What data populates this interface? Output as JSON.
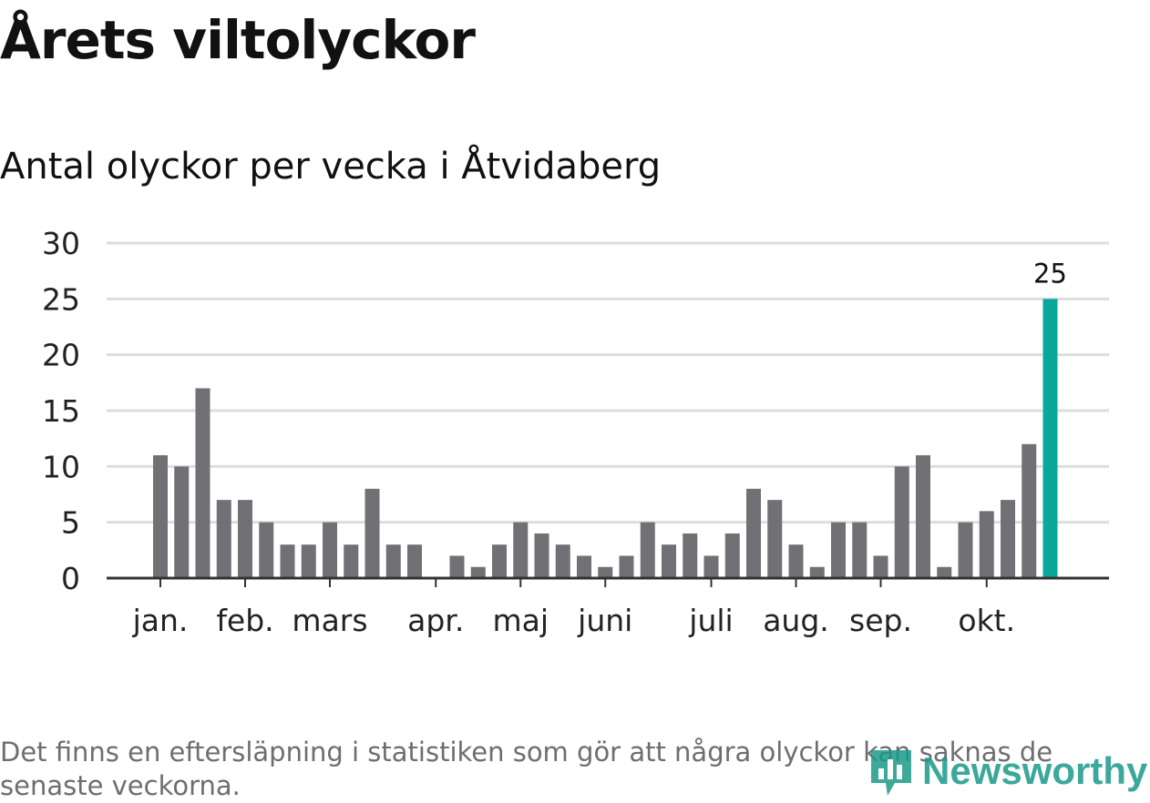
{
  "title": "Årets viltolyckor",
  "subtitle": "Antal olyckor per vecka i Åtvidaberg",
  "footnote": "Det finns en eftersläpning i statistiken som gör att några olyckor kan saknas de senaste veckorna.",
  "logo_text": "Newsworthy",
  "colors": {
    "bar": "#707075",
    "highlight": "#0aa89c",
    "grid": "#dddddd",
    "axis": "#333333"
  },
  "chart_data": {
    "type": "bar",
    "title": "Antal olyckor per vecka i Åtvidaberg",
    "xlabel": "",
    "ylabel": "",
    "ylim": [
      0,
      30
    ],
    "yticks": [
      0,
      5,
      10,
      15,
      20,
      25,
      30
    ],
    "values": [
      11,
      10,
      17,
      7,
      7,
      5,
      3,
      3,
      5,
      3,
      8,
      3,
      3,
      0,
      2,
      1,
      3,
      5,
      4,
      3,
      2,
      1,
      2,
      5,
      3,
      4,
      2,
      4,
      8,
      7,
      3,
      1,
      5,
      5,
      2,
      10,
      11,
      1,
      5,
      6,
      7,
      12,
      25
    ],
    "highlight_index": 42,
    "highlight_label": "25",
    "month_labels": [
      {
        "label": "jan.",
        "week_index": 0
      },
      {
        "label": "feb.",
        "week_index": 4
      },
      {
        "label": "mars",
        "week_index": 8
      },
      {
        "label": "apr.",
        "week_index": 13
      },
      {
        "label": "maj",
        "week_index": 17
      },
      {
        "label": "juni",
        "week_index": 21
      },
      {
        "label": "juli",
        "week_index": 26
      },
      {
        "label": "aug.",
        "week_index": 30
      },
      {
        "label": "sep.",
        "week_index": 34
      },
      {
        "label": "okt.",
        "week_index": 39
      }
    ]
  }
}
